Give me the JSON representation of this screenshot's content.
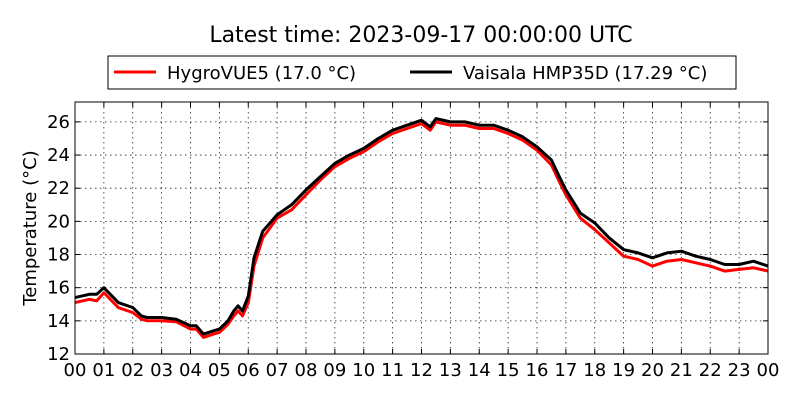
{
  "chart_data": {
    "type": "line",
    "title": "Latest time: 2023-09-17 00:00:00 UTC",
    "xlabel": "",
    "ylabel": "Temperature (°C)",
    "xlim": [
      0,
      24
    ],
    "ylim": [
      12,
      27.2
    ],
    "x_ticks": [
      "00",
      "01",
      "02",
      "03",
      "04",
      "05",
      "06",
      "07",
      "08",
      "09",
      "10",
      "11",
      "12",
      "13",
      "14",
      "15",
      "16",
      "17",
      "18",
      "19",
      "20",
      "21",
      "22",
      "23",
      "00"
    ],
    "y_ticks": [
      12,
      14,
      16,
      18,
      20,
      22,
      24,
      26
    ],
    "grid": true,
    "legend_position": "top-center",
    "series": [
      {
        "name": "HygroVUE5 (17.0 °C)",
        "color": "#ff0000",
        "points": [
          [
            0,
            15.1
          ],
          [
            0.5,
            15.3
          ],
          [
            0.75,
            15.2
          ],
          [
            1,
            15.7
          ],
          [
            1.5,
            14.8
          ],
          [
            2,
            14.5
          ],
          [
            2.3,
            14.1
          ],
          [
            2.5,
            14.0
          ],
          [
            3,
            14.0
          ],
          [
            3.5,
            13.95
          ],
          [
            4,
            13.5
          ],
          [
            4.2,
            13.5
          ],
          [
            4.45,
            13.0
          ],
          [
            4.8,
            13.2
          ],
          [
            5,
            13.3
          ],
          [
            5.3,
            13.8
          ],
          [
            5.5,
            14.3
          ],
          [
            5.65,
            14.6
          ],
          [
            5.8,
            14.3
          ],
          [
            6,
            15.1
          ],
          [
            6.2,
            17.3
          ],
          [
            6.5,
            19.0
          ],
          [
            7,
            20.2
          ],
          [
            7.5,
            20.7
          ],
          [
            8,
            21.6
          ],
          [
            8.5,
            22.5
          ],
          [
            9,
            23.3
          ],
          [
            9.5,
            23.8
          ],
          [
            10,
            24.2
          ],
          [
            10.5,
            24.8
          ],
          [
            11,
            25.3
          ],
          [
            11.5,
            25.6
          ],
          [
            12,
            25.9
          ],
          [
            12.3,
            25.5
          ],
          [
            12.5,
            26.0
          ],
          [
            13,
            25.8
          ],
          [
            13.5,
            25.8
          ],
          [
            14,
            25.6
          ],
          [
            14.5,
            25.6
          ],
          [
            15,
            25.3
          ],
          [
            15.5,
            24.9
          ],
          [
            16,
            24.3
          ],
          [
            16.5,
            23.4
          ],
          [
            16.8,
            22.3
          ],
          [
            17,
            21.6
          ],
          [
            17.5,
            20.2
          ],
          [
            18,
            19.5
          ],
          [
            18.5,
            18.7
          ],
          [
            19,
            17.9
          ],
          [
            19.5,
            17.7
          ],
          [
            20,
            17.3
          ],
          [
            20.5,
            17.6
          ],
          [
            21,
            17.7
          ],
          [
            21.5,
            17.5
          ],
          [
            22,
            17.3
          ],
          [
            22.5,
            17.0
          ],
          [
            23,
            17.1
          ],
          [
            23.5,
            17.2
          ],
          [
            24,
            17.0
          ]
        ]
      },
      {
        "name": "Vaisala HMP35D (17.29 °C)",
        "color": "#000000",
        "points": [
          [
            0,
            15.4
          ],
          [
            0.5,
            15.6
          ],
          [
            0.75,
            15.6
          ],
          [
            1,
            16.0
          ],
          [
            1.5,
            15.1
          ],
          [
            2,
            14.8
          ],
          [
            2.3,
            14.3
          ],
          [
            2.5,
            14.2
          ],
          [
            3,
            14.2
          ],
          [
            3.5,
            14.1
          ],
          [
            4,
            13.7
          ],
          [
            4.2,
            13.7
          ],
          [
            4.45,
            13.2
          ],
          [
            4.8,
            13.4
          ],
          [
            5,
            13.5
          ],
          [
            5.3,
            14.0
          ],
          [
            5.5,
            14.6
          ],
          [
            5.65,
            14.9
          ],
          [
            5.8,
            14.6
          ],
          [
            6,
            15.5
          ],
          [
            6.2,
            17.8
          ],
          [
            6.5,
            19.4
          ],
          [
            7,
            20.4
          ],
          [
            7.5,
            21.0
          ],
          [
            8,
            21.9
          ],
          [
            8.5,
            22.7
          ],
          [
            9,
            23.5
          ],
          [
            9.5,
            24.0
          ],
          [
            10,
            24.4
          ],
          [
            10.5,
            25.0
          ],
          [
            11,
            25.5
          ],
          [
            11.5,
            25.8
          ],
          [
            12,
            26.1
          ],
          [
            12.3,
            25.7
          ],
          [
            12.5,
            26.2
          ],
          [
            13,
            26.0
          ],
          [
            13.5,
            26.0
          ],
          [
            14,
            25.8
          ],
          [
            14.5,
            25.8
          ],
          [
            15,
            25.5
          ],
          [
            15.5,
            25.1
          ],
          [
            16,
            24.5
          ],
          [
            16.5,
            23.7
          ],
          [
            16.8,
            22.6
          ],
          [
            17,
            21.9
          ],
          [
            17.5,
            20.5
          ],
          [
            18,
            19.9
          ],
          [
            18.5,
            19.0
          ],
          [
            19,
            18.3
          ],
          [
            19.5,
            18.1
          ],
          [
            20,
            17.8
          ],
          [
            20.5,
            18.1
          ],
          [
            21,
            18.2
          ],
          [
            21.5,
            17.9
          ],
          [
            22,
            17.7
          ],
          [
            22.5,
            17.4
          ],
          [
            23,
            17.4
          ],
          [
            23.5,
            17.6
          ],
          [
            24,
            17.3
          ]
        ]
      }
    ]
  }
}
